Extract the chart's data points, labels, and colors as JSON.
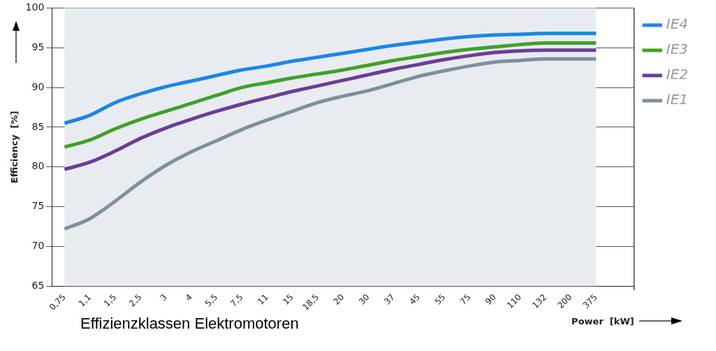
{
  "chart_data": {
    "type": "line",
    "xlabel": "Power  [kW]",
    "ylabel": "Efficiency  [%]",
    "categories": [
      "0,75",
      "1,1",
      "1,5",
      "2,5",
      "3",
      "4",
      "5,5",
      "7,5",
      "11",
      "15",
      "18,5",
      "20",
      "30",
      "37",
      "45",
      "55",
      "75",
      "90",
      "110",
      "132",
      "200",
      "375",
      null
    ],
    "series": [
      {
        "name": "IE4",
        "color": "#1a86e8",
        "values": [
          85.5,
          86.5,
          88.1,
          89.2,
          90.1,
          90.8,
          91.5,
          92.2,
          92.7,
          93.3,
          93.8,
          94.3,
          94.8,
          95.3,
          95.7,
          96.1,
          96.4,
          96.6,
          96.7,
          96.8,
          96.8,
          96.8,
          null
        ]
      },
      {
        "name": "IE3",
        "color": "#3fa02a",
        "values": [
          82.5,
          83.4,
          84.8,
          86.0,
          87.0,
          88.0,
          89.0,
          90.0,
          90.6,
          91.2,
          91.7,
          92.2,
          92.8,
          93.4,
          93.9,
          94.4,
          94.8,
          95.1,
          95.4,
          95.6,
          95.6,
          95.6,
          null
        ]
      },
      {
        "name": "IE2",
        "color": "#6a3d99",
        "values": [
          79.7,
          80.6,
          82.0,
          83.6,
          84.9,
          86.0,
          87.0,
          87.9,
          88.7,
          89.5,
          90.2,
          90.9,
          91.6,
          92.3,
          92.9,
          93.5,
          94.0,
          94.4,
          94.6,
          94.7,
          94.7,
          94.7,
          null
        ]
      },
      {
        "name": "IE1",
        "color": "#7f8f9c",
        "values": [
          72.2,
          73.5,
          75.7,
          78.1,
          80.2,
          81.9,
          83.3,
          84.7,
          85.9,
          87.0,
          88.1,
          88.9,
          89.6,
          90.5,
          91.4,
          92.1,
          92.7,
          93.2,
          93.4,
          93.6,
          93.6,
          93.6,
          null
        ]
      }
    ],
    "ylim": [
      65,
      100
    ],
    "yticks": [
      65,
      70,
      75,
      80,
      85,
      90,
      95,
      100
    ],
    "grid": "y",
    "legend": "right",
    "marker": "none",
    "line_style": "solid",
    "bands": [
      {
        "axis": "x",
        "from": "0,75",
        "to": "375",
        "color": "#e8ebf0"
      }
    ],
    "annotations": [
      "Effizienzklassen Elektromotoren"
    ]
  }
}
